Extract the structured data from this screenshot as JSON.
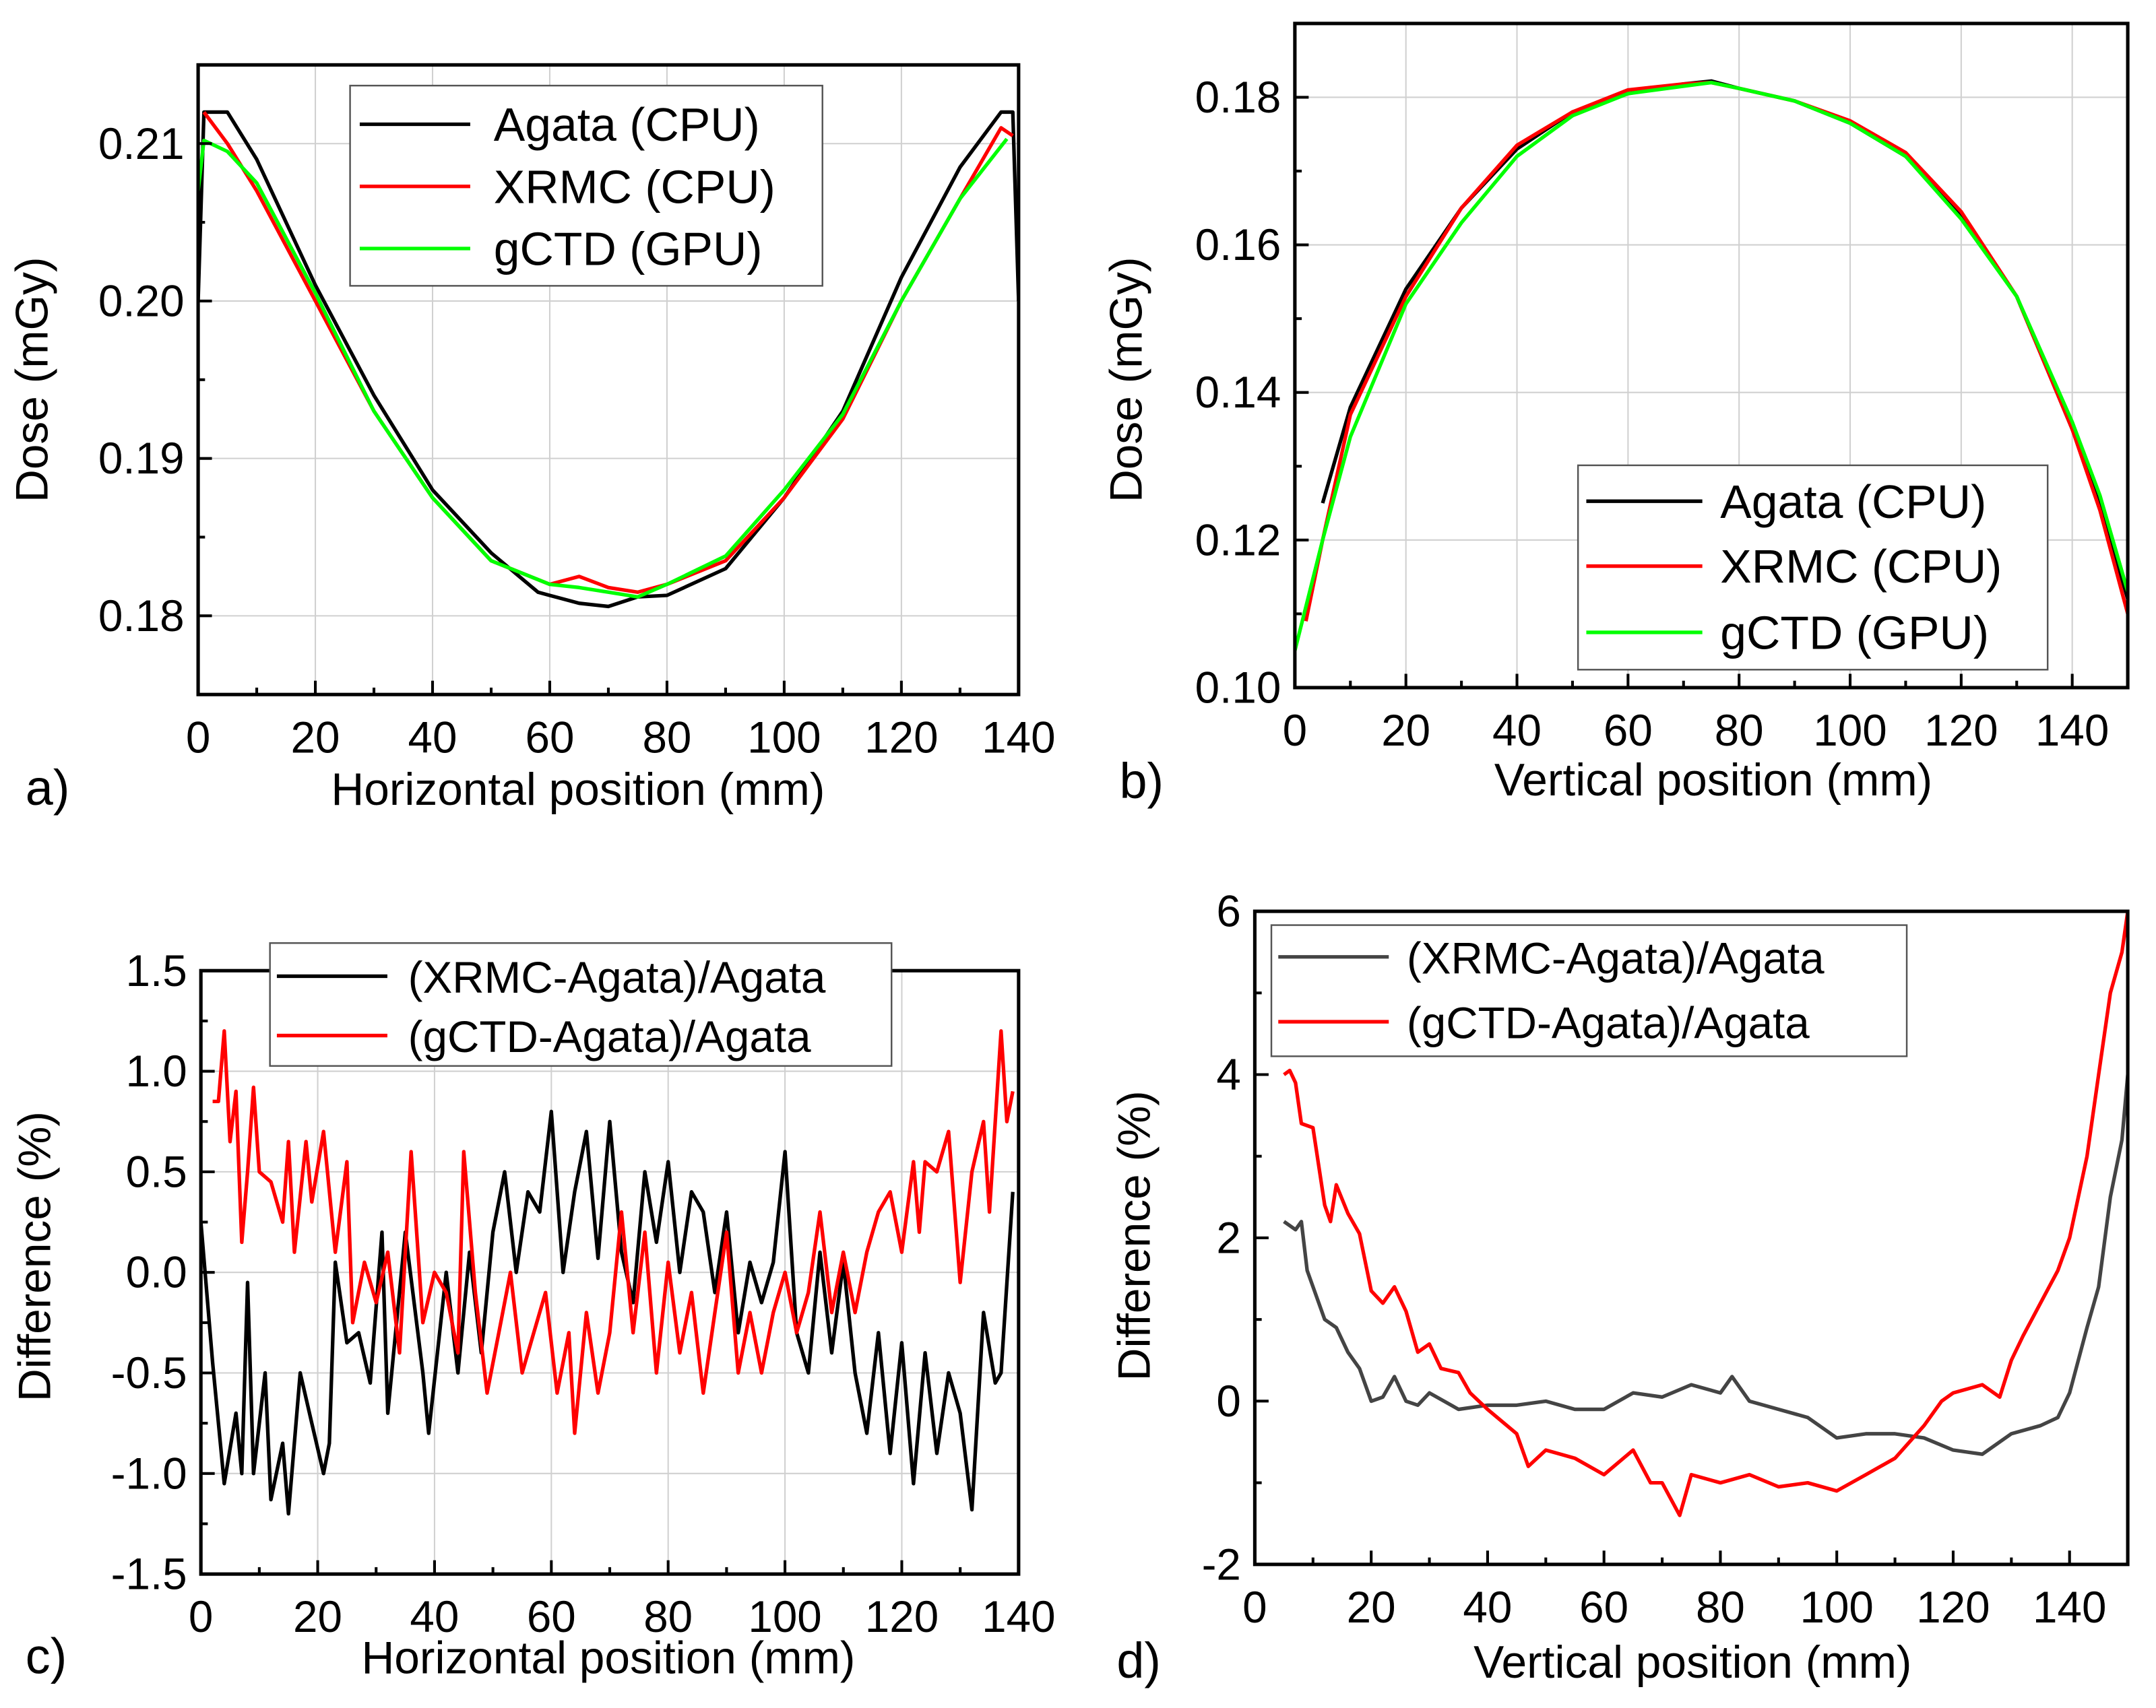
{
  "chart_data": [
    {
      "panel_label": "a)",
      "type": "line",
      "xlabel": "Horizontal position (mm)",
      "ylabel": "Dose (mGy)",
      "xlim": [
        0,
        140
      ],
      "ylim": [
        0.175,
        0.215
      ],
      "xticks": [
        0,
        20,
        40,
        60,
        80,
        100,
        120,
        140
      ],
      "yticks": [
        0.18,
        0.19,
        0.2,
        0.21
      ],
      "ytick_labels": [
        "0.18",
        "0.19",
        "0.20",
        "0.21"
      ],
      "grid": true,
      "legend_position": "top-center",
      "series": [
        {
          "name": "Agata (CPU)",
          "color": "#000000",
          "x": [
            0,
            1,
            5,
            10,
            20,
            30,
            40,
            50,
            58,
            60,
            65,
            70,
            75,
            80,
            90,
            100,
            110,
            120,
            130,
            137,
            139,
            140
          ],
          "y": [
            0.2,
            0.212,
            0.212,
            0.209,
            0.201,
            0.194,
            0.188,
            0.184,
            0.1815,
            0.1813,
            0.1808,
            0.1806,
            0.1812,
            0.1813,
            0.183,
            0.1875,
            0.193,
            0.2015,
            0.2085,
            0.212,
            0.212,
            0.2
          ]
        },
        {
          "name": "XRMC (CPU)",
          "color": "#ff0000",
          "x": [
            1,
            5,
            10,
            20,
            30,
            40,
            50,
            60,
            65,
            70,
            75,
            80,
            90,
            100,
            110,
            120,
            130,
            137,
            139
          ],
          "y": [
            0.212,
            0.21,
            0.207,
            0.2,
            0.193,
            0.1875,
            0.1835,
            0.182,
            0.1825,
            0.1818,
            0.1815,
            0.182,
            0.1835,
            0.1875,
            0.1925,
            0.2,
            0.2065,
            0.211,
            0.2105
          ]
        },
        {
          "name": "gCTD (GPU)",
          "color": "#00ff00",
          "x": [
            0,
            1,
            5,
            10,
            20,
            30,
            40,
            50,
            60,
            65,
            70,
            75,
            80,
            90,
            100,
            110,
            120,
            130,
            138
          ],
          "y": [
            0.207,
            0.2102,
            0.2095,
            0.2075,
            0.2005,
            0.193,
            0.1875,
            0.1835,
            0.182,
            0.1818,
            0.1815,
            0.1812,
            0.182,
            0.1838,
            0.188,
            0.1928,
            0.2,
            0.2065,
            0.2103
          ]
        }
      ]
    },
    {
      "panel_label": "b)",
      "type": "line",
      "xlabel": "Vertical position (mm)",
      "ylabel": "Dose (mGy)",
      "xlim": [
        0,
        150
      ],
      "ylim": [
        0.1,
        0.19
      ],
      "xticks": [
        0,
        20,
        40,
        60,
        80,
        100,
        120,
        140
      ],
      "yticks": [
        0.1,
        0.12,
        0.14,
        0.16,
        0.18
      ],
      "ytick_labels": [
        "0.10",
        "0.12",
        "0.14",
        "0.16",
        "0.18"
      ],
      "grid": true,
      "legend_position": "bottom-right",
      "series": [
        {
          "name": "Agata (CPU)",
          "color": "#000000",
          "x": [
            5,
            10,
            20,
            30,
            40,
            50,
            60,
            70,
            75,
            80,
            90,
            100,
            110,
            120,
            130,
            140,
            145,
            150
          ],
          "y": [
            0.125,
            0.138,
            0.154,
            0.165,
            0.173,
            0.178,
            0.1805,
            0.1818,
            0.1822,
            0.1812,
            0.1795,
            0.1765,
            0.172,
            0.164,
            0.153,
            0.135,
            0.125,
            0.112
          ]
        },
        {
          "name": "XRMC (CPU)",
          "color": "#ff0000",
          "x": [
            2,
            5,
            10,
            20,
            30,
            40,
            50,
            60,
            70,
            75,
            80,
            90,
            100,
            110,
            120,
            130,
            140,
            145,
            150
          ],
          "y": [
            0.109,
            0.12,
            0.137,
            0.153,
            0.165,
            0.1735,
            0.178,
            0.181,
            0.1818,
            0.182,
            0.1812,
            0.1795,
            0.1768,
            0.1725,
            0.1645,
            0.153,
            0.135,
            0.124,
            0.11
          ]
        },
        {
          "name": "gCTD (GPU)",
          "color": "#00ff00",
          "x": [
            0,
            5,
            10,
            20,
            30,
            40,
            50,
            60,
            70,
            75,
            80,
            90,
            100,
            110,
            120,
            130,
            140,
            145,
            150
          ],
          "y": [
            0.105,
            0.12,
            0.134,
            0.152,
            0.163,
            0.172,
            0.1775,
            0.1805,
            0.1815,
            0.182,
            0.1812,
            0.1795,
            0.1765,
            0.172,
            0.1635,
            0.153,
            0.136,
            0.126,
            0.113
          ]
        }
      ]
    },
    {
      "panel_label": "c)",
      "type": "line",
      "xlabel": "Horizontal position (mm)",
      "ylabel": "Difference (%)",
      "xlim": [
        0,
        140
      ],
      "ylim": [
        -1.5,
        1.5
      ],
      "xticks": [
        0,
        20,
        40,
        60,
        80,
        100,
        120,
        140
      ],
      "yticks": [
        -1.5,
        -1.0,
        -0.5,
        0.0,
        0.5,
        1.0,
        1.5
      ],
      "ytick_labels": [
        "-1.5",
        "-1.0",
        "-0.5",
        "0.0",
        "0.5",
        "1.0",
        "1.5"
      ],
      "grid": true,
      "legend_position": "top-center",
      "series": [
        {
          "name": "(XRMC-Agata)/Agata",
          "color": "#000000",
          "x": [
            0,
            2,
            4,
            6,
            7,
            8,
            9,
            11,
            12,
            14,
            15,
            17,
            19,
            21,
            22,
            23,
            25,
            27,
            29,
            31,
            32,
            35,
            38,
            39,
            42,
            44,
            46,
            48,
            50,
            52,
            54,
            56,
            58,
            60,
            62,
            64,
            66,
            68,
            70,
            72,
            74,
            76,
            78,
            80,
            82,
            84,
            86,
            88,
            90,
            92,
            94,
            96,
            98,
            100,
            102,
            104,
            106,
            108,
            110,
            112,
            114,
            116,
            118,
            120,
            122,
            124,
            126,
            128,
            130,
            132,
            134,
            136,
            137,
            139
          ],
          "y": [
            0.25,
            -0.45,
            -1.05,
            -0.7,
            -1.0,
            -0.05,
            -1.0,
            -0.5,
            -1.13,
            -0.85,
            -1.2,
            -0.5,
            -0.75,
            -1.0,
            -0.85,
            0.05,
            -0.35,
            -0.3,
            -0.55,
            0.2,
            -0.7,
            0.2,
            -0.5,
            -0.8,
            0.0,
            -0.5,
            0.1,
            -0.4,
            0.2,
            0.5,
            0.0,
            0.4,
            0.3,
            0.8,
            0.0,
            0.4,
            0.7,
            0.07,
            0.75,
            0.1,
            -0.15,
            0.5,
            0.15,
            0.55,
            0.0,
            0.4,
            0.3,
            -0.1,
            0.3,
            -0.3,
            0.05,
            -0.15,
            0.05,
            0.6,
            -0.3,
            -0.5,
            0.1,
            -0.4,
            0.05,
            -0.5,
            -0.8,
            -0.3,
            -0.9,
            -0.35,
            -1.05,
            -0.4,
            -0.9,
            -0.5,
            -0.7,
            -1.18,
            -0.2,
            -0.55,
            -0.5,
            0.4
          ]
        },
        {
          "name": "(gCTD-Agata)/Agata",
          "color": "#ff0000",
          "x": [
            2,
            3,
            4,
            5,
            6,
            7,
            8,
            9,
            10,
            12,
            14,
            15,
            16,
            18,
            19,
            21,
            23,
            25,
            26,
            28,
            30,
            32,
            34,
            36,
            38,
            40,
            42,
            44,
            45,
            47,
            49,
            51,
            53,
            55,
            57,
            59,
            61,
            63,
            64,
            66,
            68,
            70,
            72,
            74,
            76,
            78,
            80,
            82,
            84,
            86,
            88,
            90,
            92,
            94,
            96,
            98,
            100,
            102,
            104,
            106,
            108,
            110,
            112,
            114,
            116,
            118,
            120,
            122,
            123,
            124,
            126,
            128,
            130,
            132,
            134,
            135,
            137,
            138,
            139
          ],
          "y": [
            0.85,
            0.85,
            1.2,
            0.65,
            0.9,
            0.15,
            0.5,
            0.92,
            0.5,
            0.45,
            0.25,
            0.65,
            0.1,
            0.65,
            0.35,
            0.7,
            0.1,
            0.55,
            -0.25,
            0.05,
            -0.15,
            0.1,
            -0.4,
            0.6,
            -0.25,
            0.0,
            -0.1,
            -0.4,
            0.6,
            -0.1,
            -0.6,
            -0.3,
            0.0,
            -0.5,
            -0.3,
            -0.1,
            -0.6,
            -0.3,
            -0.8,
            -0.2,
            -0.6,
            -0.3,
            0.3,
            -0.3,
            0.2,
            -0.5,
            0.05,
            -0.4,
            -0.1,
            -0.6,
            -0.2,
            0.2,
            -0.5,
            -0.2,
            -0.5,
            -0.2,
            0.0,
            -0.3,
            -0.1,
            0.3,
            -0.2,
            0.1,
            -0.2,
            0.1,
            0.3,
            0.4,
            0.1,
            0.55,
            0.2,
            0.55,
            0.5,
            0.7,
            -0.05,
            0.5,
            0.75,
            0.3,
            1.2,
            0.75,
            0.9
          ]
        }
      ]
    },
    {
      "panel_label": "d)",
      "type": "line",
      "xlabel": "Vertical position (mm)",
      "ylabel": "Difference (%)",
      "xlim": [
        0,
        150
      ],
      "ylim": [
        -2,
        6
      ],
      "xticks": [
        0,
        20,
        40,
        60,
        80,
        100,
        120,
        140
      ],
      "yticks": [
        -2,
        0,
        2,
        4,
        6
      ],
      "ytick_labels": [
        "-2",
        "0",
        "2",
        "4",
        "6"
      ],
      "grid": false,
      "legend_position": "top-left",
      "series": [
        {
          "name": "(XRMC-Agata)/Agata",
          "color": "#444444",
          "x": [
            5,
            7,
            8,
            9,
            12,
            14,
            16,
            18,
            20,
            22,
            24,
            26,
            28,
            30,
            35,
            40,
            45,
            50,
            55,
            60,
            65,
            70,
            75,
            80,
            82,
            85,
            90,
            95,
            100,
            105,
            110,
            115,
            120,
            125,
            130,
            135,
            138,
            140,
            143,
            145,
            147,
            149,
            150
          ],
          "y": [
            2.2,
            2.1,
            2.2,
            1.6,
            1.0,
            0.9,
            0.6,
            0.4,
            0.0,
            0.05,
            0.3,
            0.0,
            -0.05,
            0.1,
            -0.1,
            -0.05,
            -0.05,
            0.0,
            -0.1,
            -0.1,
            0.1,
            0.05,
            0.2,
            0.1,
            0.3,
            0.0,
            -0.1,
            -0.2,
            -0.45,
            -0.4,
            -0.4,
            -0.45,
            -0.6,
            -0.65,
            -0.4,
            -0.3,
            -0.2,
            0.1,
            0.9,
            1.4,
            2.5,
            3.2,
            4.0
          ]
        },
        {
          "name": "(gCTD-Agata)/Agata",
          "color": "#ff0000",
          "x": [
            5,
            6,
            7,
            8,
            10,
            12,
            13,
            14,
            16,
            18,
            20,
            22,
            24,
            26,
            28,
            30,
            32,
            35,
            37,
            40,
            45,
            47,
            50,
            55,
            60,
            65,
            68,
            70,
            73,
            75,
            80,
            85,
            90,
            95,
            100,
            105,
            110,
            115,
            118,
            120,
            125,
            128,
            130,
            132,
            135,
            138,
            140,
            143,
            145,
            147,
            149,
            150
          ],
          "y": [
            4.0,
            4.05,
            3.9,
            3.4,
            3.35,
            2.4,
            2.2,
            2.65,
            2.3,
            2.05,
            1.35,
            1.2,
            1.4,
            1.1,
            0.6,
            0.7,
            0.4,
            0.35,
            0.1,
            -0.1,
            -0.4,
            -0.8,
            -0.6,
            -0.7,
            -0.9,
            -0.6,
            -1.0,
            -1.0,
            -1.4,
            -0.9,
            -1.0,
            -0.9,
            -1.05,
            -1.0,
            -1.1,
            -0.9,
            -0.7,
            -0.3,
            0.0,
            0.1,
            0.2,
            0.05,
            0.5,
            0.8,
            1.2,
            1.6,
            2.0,
            3.0,
            4.0,
            5.0,
            5.5,
            6.0
          ]
        }
      ]
    }
  ]
}
